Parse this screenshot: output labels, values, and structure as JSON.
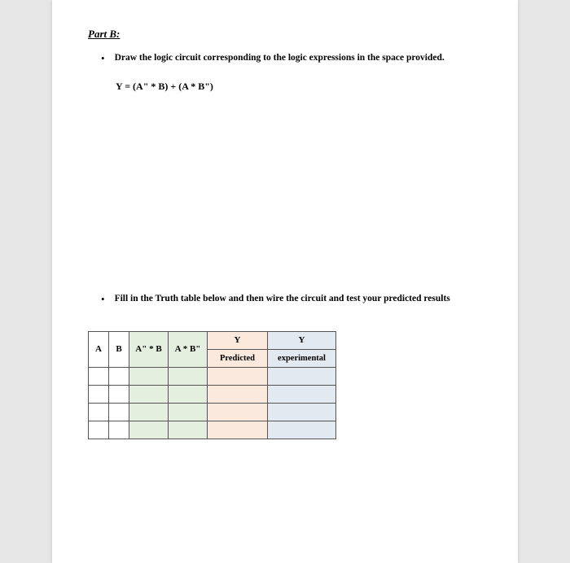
{
  "part_title": "Part B:",
  "bullet1": "Draw the logic circuit corresponding to the logic expressions in the space provided.",
  "expression": "Y = (A\" * B) + (A * B\")",
  "bullet2": "Fill in the Truth table below  and then wire the circuit and test your predicted results",
  "table": {
    "columns": {
      "a": "A",
      "b": "B",
      "c": "A\" * B",
      "d": "A * B\"",
      "y1_top": "Y",
      "y1_sub": "Predicted",
      "y2_top": "Y",
      "y2_sub": "experimental"
    },
    "colors": {
      "green": "#e4efe0",
      "peach": "#fbe9dd",
      "blue": "#e2e9f1",
      "border": "#555555"
    },
    "num_data_rows": 4
  }
}
